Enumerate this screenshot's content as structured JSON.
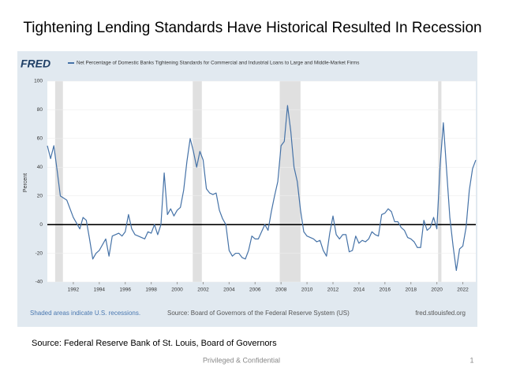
{
  "slide": {
    "title": "Tightening Lending Standards Have Historical Resulted In Recession",
    "source": "Source: Federal Reserve Bank of St. Louis, Board of Governors",
    "footer": "Privileged & Confidential",
    "page_number": 1
  },
  "chart_data": {
    "type": "line",
    "logo": "FRED",
    "series": [
      {
        "name": "Net Percentage of Domestic Banks Tightening Standards for Commercial and Industrial Loans to Large and Middle-Market Firms",
        "color": "#4572a7",
        "x": [
          1990,
          1990.25,
          1990.5,
          1990.75,
          1991,
          1991.5,
          1992,
          1992.5,
          1992.75,
          1993,
          1993.25,
          1993.5,
          1993.75,
          1994,
          1994.5,
          1994.75,
          1995,
          1995.5,
          1995.75,
          1996,
          1996.25,
          1996.5,
          1996.75,
          1997,
          1997.5,
          1997.75,
          1998,
          1998.25,
          1998.5,
          1998.75,
          1999,
          1999.25,
          1999.5,
          1999.75,
          2000,
          2000.25,
          2000.5,
          2000.75,
          2001,
          2001.25,
          2001.5,
          2001.75,
          2002,
          2002.25,
          2002.5,
          2002.75,
          2003,
          2003.25,
          2003.5,
          2003.75,
          2004,
          2004.25,
          2004.5,
          2004.75,
          2005,
          2005.25,
          2005.5,
          2005.75,
          2006,
          2006.25,
          2006.5,
          2006.75,
          2007,
          2007.25,
          2007.5,
          2007.75,
          2008,
          2008.25,
          2008.5,
          2008.75,
          2009,
          2009.25,
          2009.5,
          2009.75,
          2010,
          2010.5,
          2010.75,
          2011,
          2011.25,
          2011.5,
          2011.75,
          2012,
          2012.25,
          2012.5,
          2012.75,
          2013,
          2013.25,
          2013.5,
          2013.75,
          2014,
          2014.25,
          2014.5,
          2014.75,
          2015,
          2015.25,
          2015.5,
          2015.75,
          2016,
          2016.25,
          2016.5,
          2016.75,
          2017,
          2017.25,
          2017.5,
          2017.75,
          2018,
          2018.25,
          2018.5,
          2018.75,
          2019,
          2019.25,
          2019.5,
          2019.75,
          2020,
          2020.25,
          2020.5,
          2020.75,
          2021,
          2021.25,
          2021.5,
          2021.75,
          2022,
          2022.25,
          2022.5,
          2022.75,
          2023
        ],
        "values": [
          55,
          46,
          55,
          38,
          20,
          17,
          5,
          -3,
          5,
          3,
          -10,
          -24,
          -20,
          -18,
          -10,
          -22,
          -8,
          -6,
          -8,
          -5,
          7,
          -3,
          -7,
          -8,
          -10,
          -5,
          -6,
          0,
          -7,
          0,
          36,
          7,
          11,
          6,
          10,
          12,
          24,
          44,
          60,
          51,
          40,
          51,
          45,
          25,
          22,
          21,
          22,
          10,
          4,
          0,
          -18,
          -22,
          -20,
          -20,
          -23,
          -24,
          -18,
          -8,
          -10,
          -10,
          -5,
          0,
          -4,
          9,
          20,
          30,
          55,
          58,
          83,
          65,
          40,
          30,
          10,
          -5,
          -8,
          -10,
          -12,
          -11,
          -18,
          -22,
          -6,
          6,
          -7,
          -10,
          -7,
          -7,
          -19,
          -18,
          -8,
          -13,
          -11,
          -12,
          -10,
          -5,
          -7,
          -8,
          7,
          8,
          11,
          9,
          2,
          2,
          -2,
          -4,
          -9,
          -10,
          -12,
          -16,
          -16,
          3,
          -4,
          -2,
          5,
          -3,
          41,
          71,
          38,
          5,
          -15,
          -32,
          -17,
          -15,
          -2,
          24,
          39,
          45
        ]
      }
    ],
    "recessions": [
      [
        1990.6,
        1991.2
      ],
      [
        2001.2,
        2001.9
      ],
      [
        2007.9,
        2009.5
      ],
      [
        2020.1,
        2020.35
      ]
    ],
    "recession_color": "#e0e0e0",
    "y_label": "Percent",
    "xlim": [
      1990,
      2023
    ],
    "xticks": [
      1992,
      1994,
      1996,
      1998,
      2000,
      2002,
      2004,
      2006,
      2008,
      2010,
      2012,
      2014,
      2016,
      2018,
      2020,
      2022
    ],
    "ylim": [
      -40,
      100
    ],
    "yticks": [
      -40,
      -20,
      0,
      20,
      40,
      60,
      80,
      100
    ],
    "grid": true,
    "note": "Shaded areas indicate U.S. recessions.",
    "source": "Source: Board of Governors of the Federal Reserve System (US)",
    "site": "fred.stlouisfed.org"
  }
}
